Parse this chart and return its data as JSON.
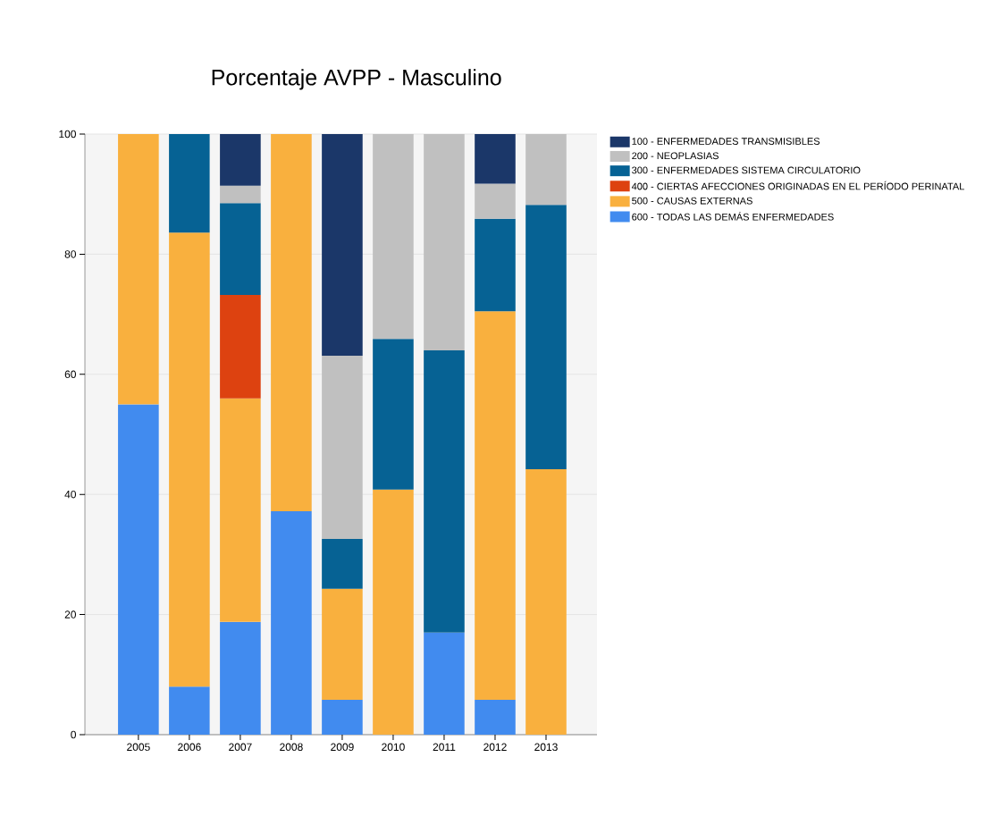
{
  "chart_data": {
    "type": "bar",
    "title": "Porcentaje AVPP - Masculino",
    "categories": [
      "2005",
      "2006",
      "2007",
      "2008",
      "2009",
      "2010",
      "2011",
      "2012",
      "2013"
    ],
    "stacked": true,
    "series": [
      {
        "name": "600 - TODAS LAS DEMÁS ENFERMEDADES",
        "color": "#418bef",
        "values": [
          55,
          8,
          18.8,
          37.2,
          5.8,
          null,
          17,
          5.8,
          null
        ]
      },
      {
        "name": "500 - CAUSAS EXTERNAS",
        "color": "#f9b03e",
        "values": [
          45,
          75.6,
          37.2,
          62.8,
          18.5,
          40.8,
          null,
          64.7,
          44.2
        ]
      },
      {
        "name": "400 - CIERTAS AFECCIONES ORIGINADAS EN EL PERÍODO PERINATAL",
        "color": "#dd4210",
        "values": [
          null,
          null,
          17.2,
          null,
          null,
          null,
          null,
          null,
          null
        ]
      },
      {
        "name": "300 - ENFERMEDADES SISTEMA CIRCULATORIO",
        "color": "#066294",
        "values": [
          null,
          16.4,
          15.3,
          null,
          8.3,
          25.1,
          47,
          15.4,
          44
        ]
      },
      {
        "name": "200 - NEOPLASIAS",
        "color": "#c0c0c0",
        "values": [
          null,
          null,
          2.9,
          null,
          30.5,
          34.1,
          36,
          5.8,
          11.8
        ]
      },
      {
        "name": "100 - ENFERMEDADES TRANSMISIBLES",
        "color": "#1b3769",
        "values": [
          null,
          null,
          8.6,
          null,
          36.9,
          null,
          null,
          8.3,
          null
        ]
      }
    ],
    "ylim": [
      0,
      100
    ],
    "yticks": [
      0,
      20,
      40,
      60,
      80,
      100
    ],
    "grid": "y",
    "legend": "right"
  }
}
